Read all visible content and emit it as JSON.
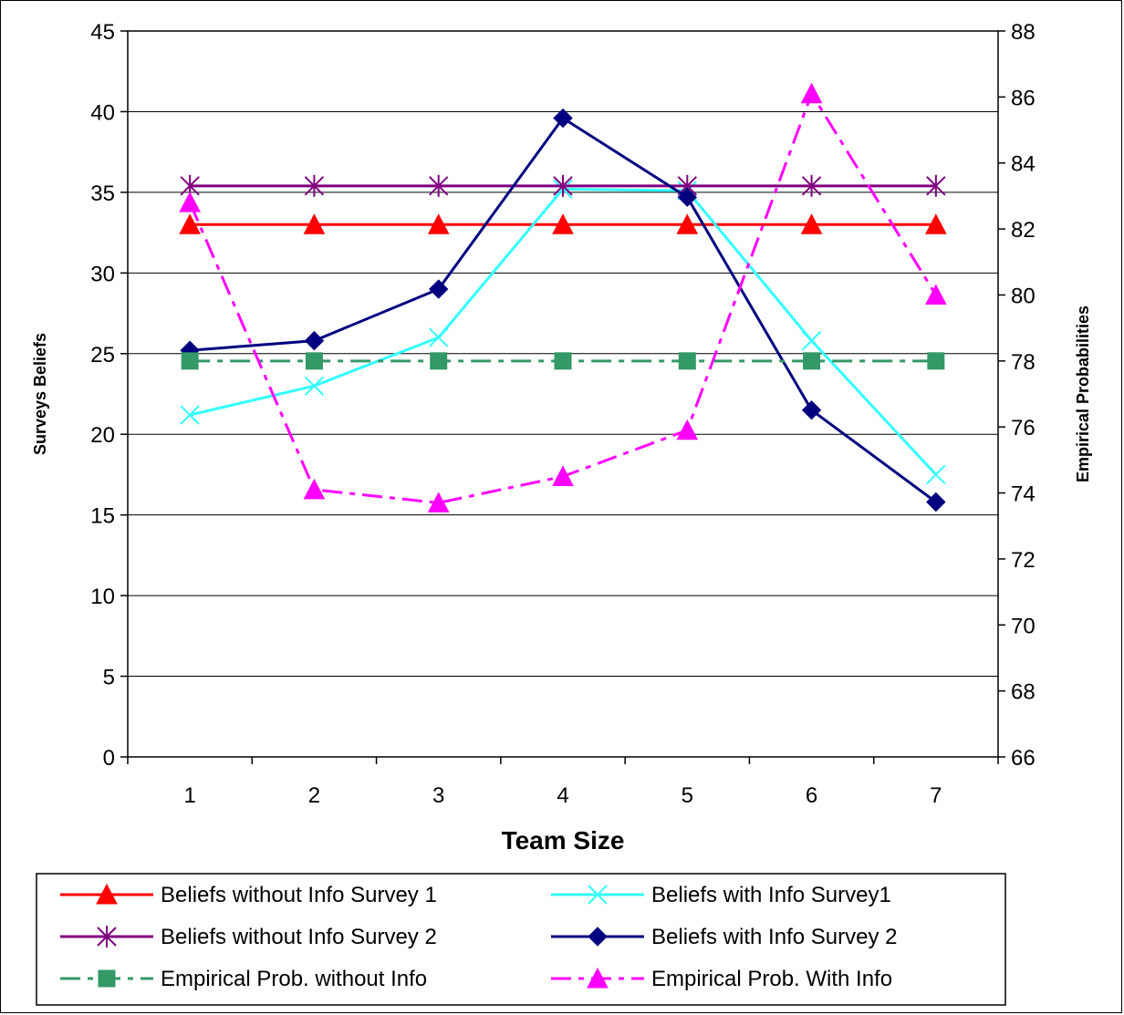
{
  "chart_data": {
    "type": "line",
    "x": [
      1,
      2,
      3,
      4,
      5,
      6,
      7
    ],
    "xlabel": "Team Size",
    "ylabel": "Surveys Beliefs",
    "y2label": "Empirical Probabilities",
    "ylim": [
      0,
      45
    ],
    "y2lim": [
      66,
      88
    ],
    "yticks": [
      0,
      5,
      10,
      15,
      20,
      25,
      30,
      35,
      40,
      45
    ],
    "y2ticks": [
      66,
      68,
      70,
      72,
      74,
      76,
      78,
      80,
      82,
      84,
      86,
      88
    ],
    "grid": "horizontal",
    "legend_position": "bottom",
    "series": [
      {
        "name": "Beliefs without Info Survey 1",
        "axis": "left",
        "color": "#ff0000",
        "marker": "triangle",
        "dash": "solid",
        "values": [
          33,
          33,
          33,
          33,
          33,
          33,
          33
        ]
      },
      {
        "name": "Beliefs with Info Survey1",
        "axis": "left",
        "color": "#33ffff",
        "marker": "x",
        "dash": "solid",
        "values": [
          21.2,
          23.0,
          26.0,
          35.2,
          35.1,
          25.8,
          17.5
        ]
      },
      {
        "name": "Beliefs without Info Survey 2",
        "axis": "left",
        "color": "#800080",
        "marker": "star",
        "dash": "solid",
        "values": [
          35.4,
          35.4,
          35.4,
          35.4,
          35.4,
          35.4,
          35.4
        ]
      },
      {
        "name": "Beliefs with Info Survey 2",
        "axis": "left",
        "color": "#000080",
        "marker": "diamond",
        "dash": "solid",
        "values": [
          25.2,
          25.8,
          29.0,
          39.6,
          34.7,
          21.5,
          15.8
        ]
      },
      {
        "name": "Empirical Prob. without Info",
        "axis": "right",
        "color": "#339966",
        "marker": "square",
        "dash": "dashdot",
        "values": [
          78,
          78,
          78,
          78,
          78,
          78,
          78
        ]
      },
      {
        "name": "Empirical Prob. With Info",
        "axis": "right",
        "color": "#ff00ff",
        "marker": "triangle",
        "dash": "dashdot",
        "values": [
          82.8,
          74.1,
          73.7,
          74.5,
          75.9,
          86.1,
          80.0
        ]
      }
    ]
  }
}
